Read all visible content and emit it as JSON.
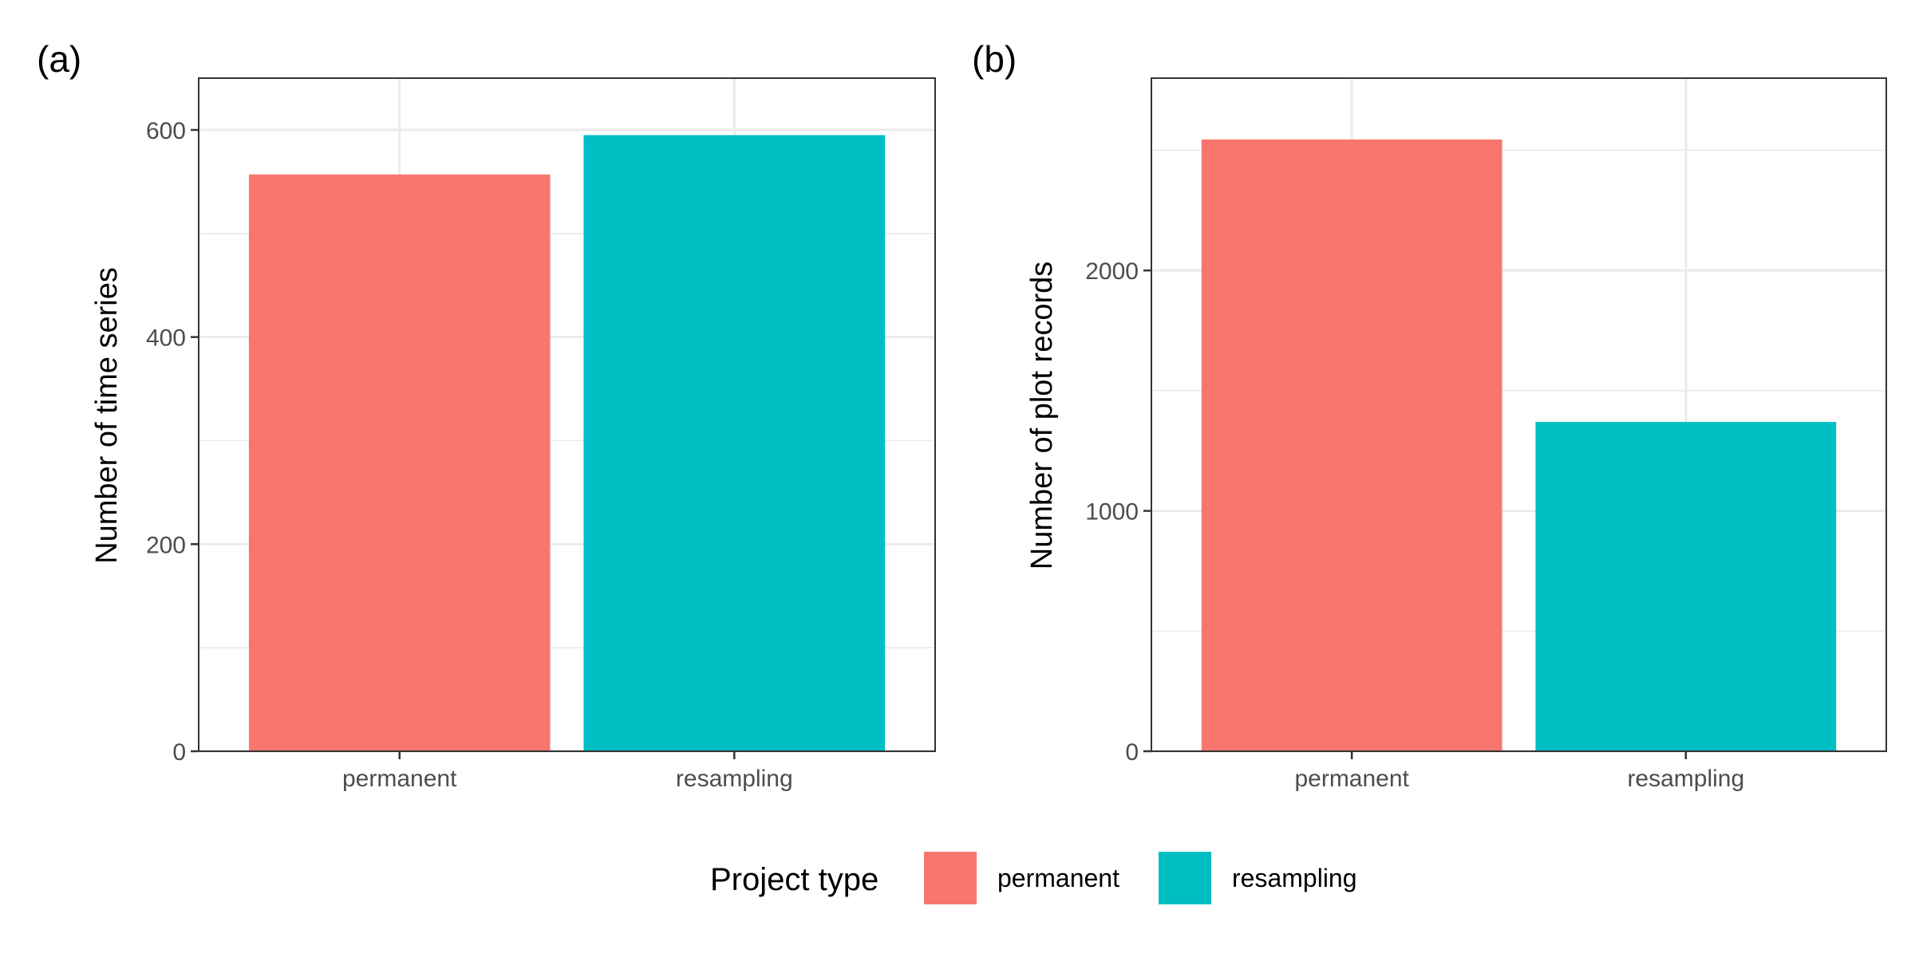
{
  "chart_data": [
    {
      "type": "bar",
      "panel_tag": "(a)",
      "categories": [
        "permanent",
        "resampling"
      ],
      "values": [
        557,
        595
      ],
      "xlabel": "",
      "ylabel": "Number of time series",
      "ylim": [
        0,
        650
      ],
      "yticks": [
        0,
        200,
        400,
        600
      ],
      "ytick_labels": [
        "0",
        "200",
        "400",
        "600"
      ],
      "grid": true
    },
    {
      "type": "bar",
      "panel_tag": "(b)",
      "categories": [
        "permanent",
        "resampling"
      ],
      "values": [
        2545,
        1370
      ],
      "xlabel": "",
      "ylabel": "Number of plot records",
      "ylim": [
        0,
        2800
      ],
      "yticks": [
        0,
        1000,
        2000
      ],
      "ytick_labels": [
        "0",
        "1000",
        "2000"
      ],
      "grid": true
    }
  ],
  "legend": {
    "title": "Project type",
    "position": "bottom",
    "items": [
      {
        "label": "permanent",
        "color": "#F8766D"
      },
      {
        "label": "resampling",
        "color": "#00BFC4"
      }
    ]
  },
  "colors": {
    "permanent": "#F8766D",
    "resampling": "#00BFC4"
  }
}
